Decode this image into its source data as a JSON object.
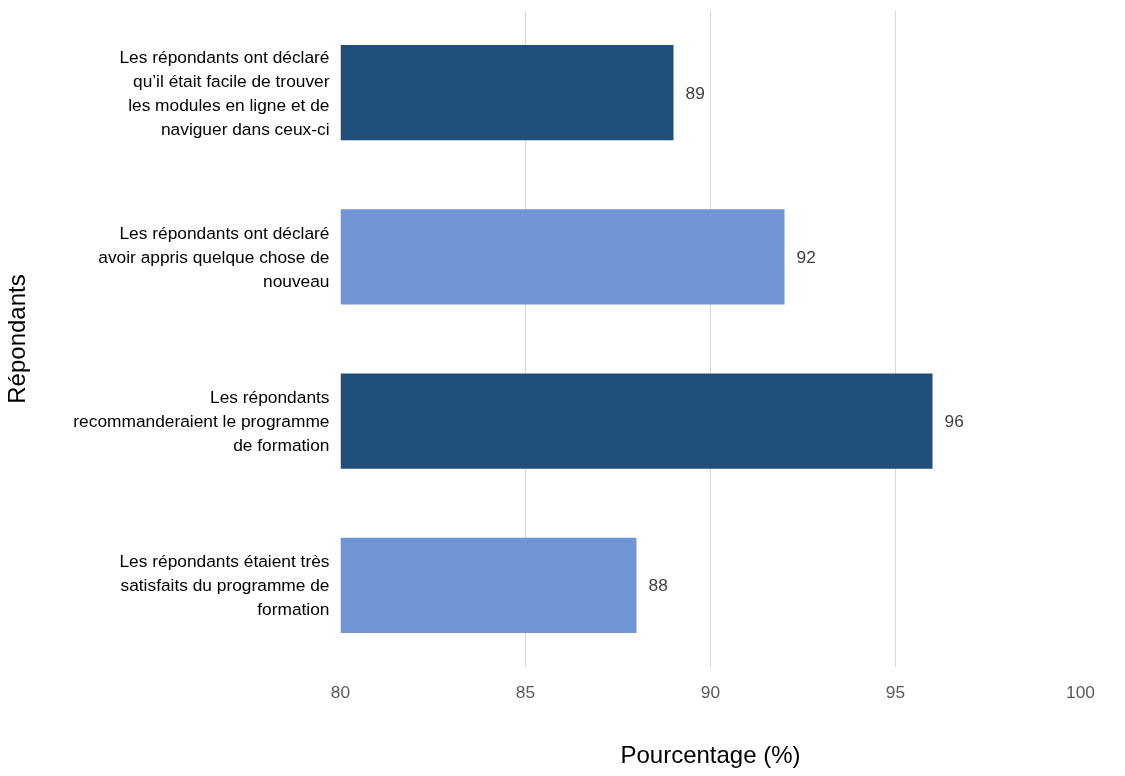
{
  "chart_data": {
    "type": "bar",
    "orientation": "horizontal",
    "xlabel": "Pourcentage (%)",
    "ylabel": "Répondants",
    "categories": [
      "Les répondants ont déclaré qu’il était facile de trouver les modules en ligne et de naviguer dans ceux-ci",
      "Les répondants ont déclaré avoir appris quelque chose de nouveau",
      "Les répondants recommanderaient le programme de formation",
      "Les répondants étaient très satisfaits du programme de formation"
    ],
    "values": [
      89,
      92,
      96,
      88
    ],
    "colors": [
      "#1f4e79",
      "#6f95d4",
      "#1f4e79",
      "#6f95d4"
    ],
    "xlim": [
      80,
      100
    ],
    "xticks": [
      80,
      85,
      90,
      95,
      100
    ],
    "grid": "x",
    "data_labels": true
  }
}
